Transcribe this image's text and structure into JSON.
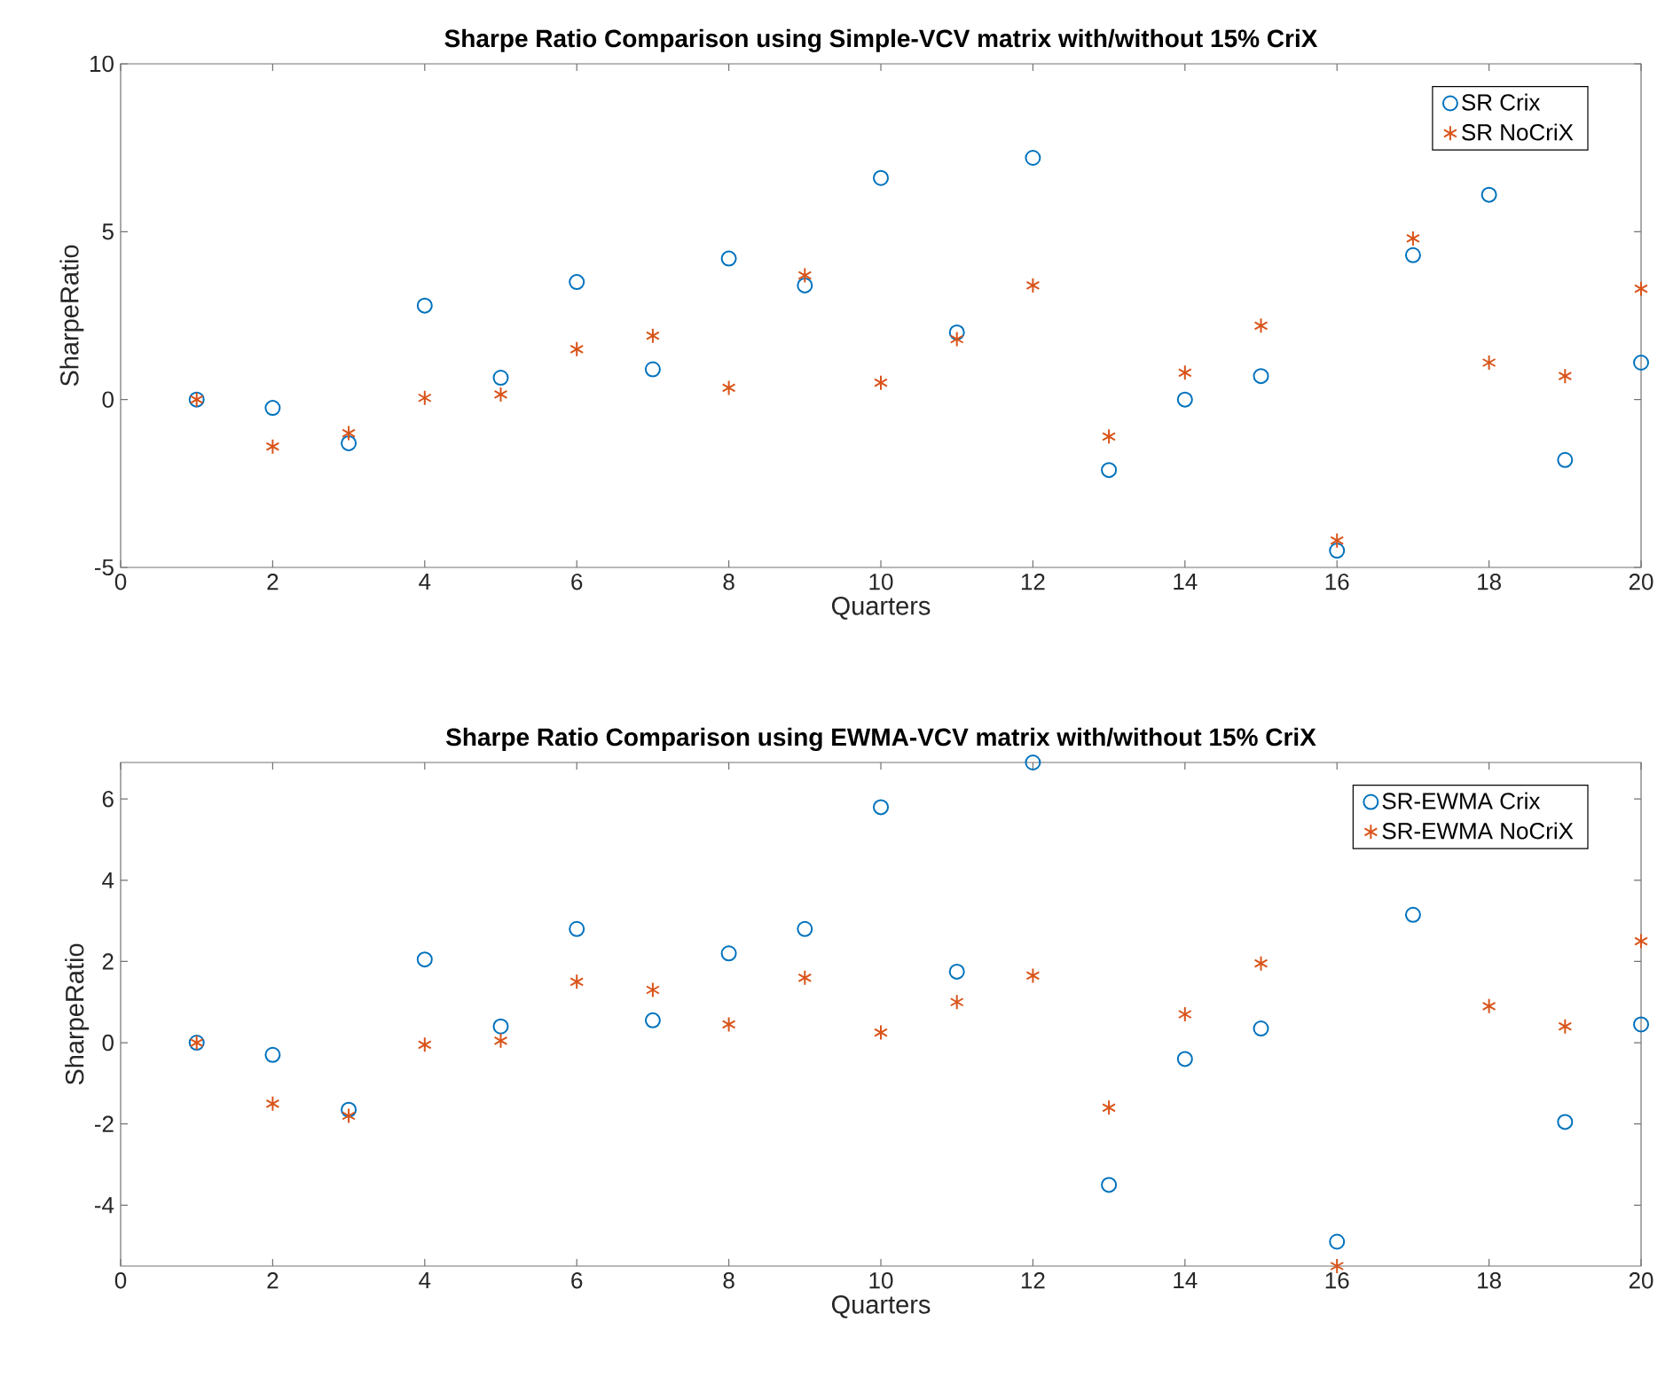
{
  "chart_data": [
    {
      "type": "scatter",
      "title": "Sharpe Ratio Comparison using Simple-VCV matrix with/without 15% CriX",
      "xlabel": "Quarters",
      "ylabel": "SharpeRatio",
      "x": [
        1,
        2,
        3,
        4,
        5,
        6,
        7,
        8,
        9,
        10,
        11,
        12,
        13,
        14,
        15,
        16,
        17,
        18,
        19,
        20
      ],
      "series": [
        {
          "name": "SR Crix",
          "color": "#0072bd",
          "marker": "circle",
          "values": [
            0,
            -0.25,
            -1.3,
            2.8,
            0.65,
            3.5,
            0.9,
            4.2,
            3.4,
            6.6,
            2.0,
            7.2,
            -2.1,
            0.0,
            0.7,
            -4.5,
            4.3,
            6.1,
            -1.8,
            1.1
          ]
        },
        {
          "name": "SR NoCriX",
          "color": "#d95319",
          "marker": "cross",
          "values": [
            0,
            -1.4,
            -1.0,
            0.05,
            0.15,
            1.5,
            1.9,
            0.35,
            3.7,
            0.5,
            1.8,
            3.4,
            -1.1,
            0.8,
            2.2,
            -4.2,
            4.8,
            1.1,
            0.7,
            3.3
          ]
        }
      ],
      "xlim": [
        0,
        20
      ],
      "xticks": [
        0,
        2,
        4,
        6,
        8,
        10,
        12,
        14,
        16,
        18,
        20
      ],
      "ylim": [
        -5,
        10
      ],
      "yticks": [
        -5,
        0,
        5,
        10
      ],
      "legend": "top right",
      "grid": false
    },
    {
      "type": "scatter",
      "title": "Sharpe Ratio Comparison using EWMA-VCV matrix with/without 15% CriX",
      "xlabel": "Quarters",
      "ylabel": "SharpeRatio",
      "x": [
        1,
        2,
        3,
        4,
        5,
        6,
        7,
        8,
        9,
        10,
        11,
        12,
        13,
        14,
        15,
        16,
        17,
        18,
        19,
        20
      ],
      "series": [
        {
          "name": "SR-EWMA Crix",
          "color": "#0072bd",
          "marker": "circle",
          "values": [
            0,
            -0.3,
            -1.65,
            2.05,
            0.4,
            2.8,
            0.55,
            2.2,
            2.8,
            5.8,
            1.75,
            6.9,
            -3.5,
            -0.4,
            0.35,
            -4.9,
            3.15,
            null,
            -1.95,
            0.45
          ]
        },
        {
          "name": "SR-EWMA NoCriX",
          "color": "#d95319",
          "marker": "cross",
          "values": [
            0,
            -1.5,
            -1.8,
            -0.05,
            0.05,
            1.5,
            1.3,
            0.45,
            1.6,
            0.25,
            1.0,
            1.65,
            -1.6,
            0.7,
            1.95,
            -5.5,
            null,
            0.9,
            0.4,
            2.5
          ]
        }
      ],
      "xlim": [
        0,
        20
      ],
      "xticks": [
        0,
        2,
        4,
        6,
        8,
        10,
        12,
        14,
        16,
        18,
        20
      ],
      "ylim": [
        -5.5,
        6.9
      ],
      "yticks": [
        -4,
        -2,
        0,
        2,
        4,
        6
      ],
      "legend": "top right",
      "grid": false
    }
  ]
}
